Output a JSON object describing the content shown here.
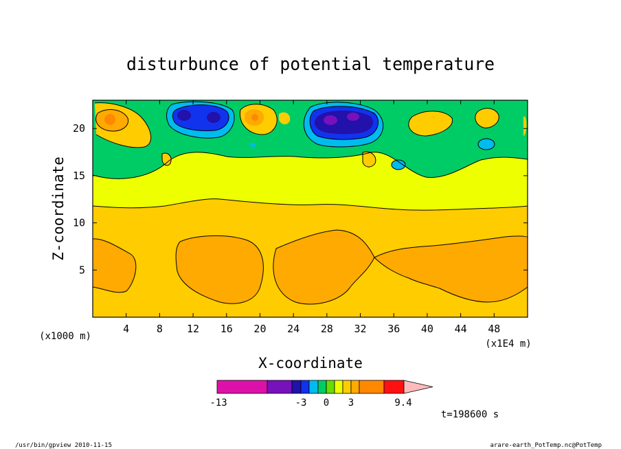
{
  "chart_data": {
    "type": "heatmap",
    "title": "disturbunce of potential temperature",
    "xlabel": "X-coordinate",
    "ylabel": "Z-coordinate",
    "x_unit": "(x1E4 m)",
    "z_unit": "(x1000 m)",
    "xlim": [
      0,
      52
    ],
    "zlim": [
      0,
      23
    ],
    "x_ticks": [
      4,
      8,
      12,
      16,
      20,
      24,
      28,
      32,
      36,
      40,
      44,
      48
    ],
    "z_ticks": [
      5,
      10,
      15,
      20
    ],
    "time_label": "t=198600 s",
    "colorbar": {
      "colors": [
        "#dd11aa",
        "#7711bb",
        "#2211aa",
        "#1133ee",
        "#00bbee",
        "#00cc66",
        "#66dd00",
        "#eeff00",
        "#ffcc00",
        "#ffaa00",
        "#ff8800",
        "#ff1111",
        "#ff7777",
        "#ffbbbb"
      ],
      "tick_labels": [
        "-13",
        "-3",
        "0",
        "3",
        "9.4"
      ]
    },
    "regions": [
      {
        "level": "1.5",
        "color": "#ffcc00",
        "desc": "background 0 to 3 km ... 11.5 km"
      },
      {
        "level": "3",
        "color": "#ffaa00",
        "desc": "lower cells near x 0-5, 11-20, 21-34, 34-52"
      },
      {
        "level": "0.5",
        "color": "#eeff00",
        "desc": "band 11.5 to 17 km"
      },
      {
        "level": "-0.5",
        "color": "#00cc66",
        "desc": "upper layer 17-23 km"
      },
      {
        "level": "-3",
        "color": "#1133ee",
        "desc": "cold cores near x 12-15 and 26-32 at z 20-22"
      }
    ]
  },
  "footer": {
    "left": "/usr/bin/gpview   2010-11-15",
    "right": "arare-earth_PotTemp.nc@PotTemp"
  }
}
